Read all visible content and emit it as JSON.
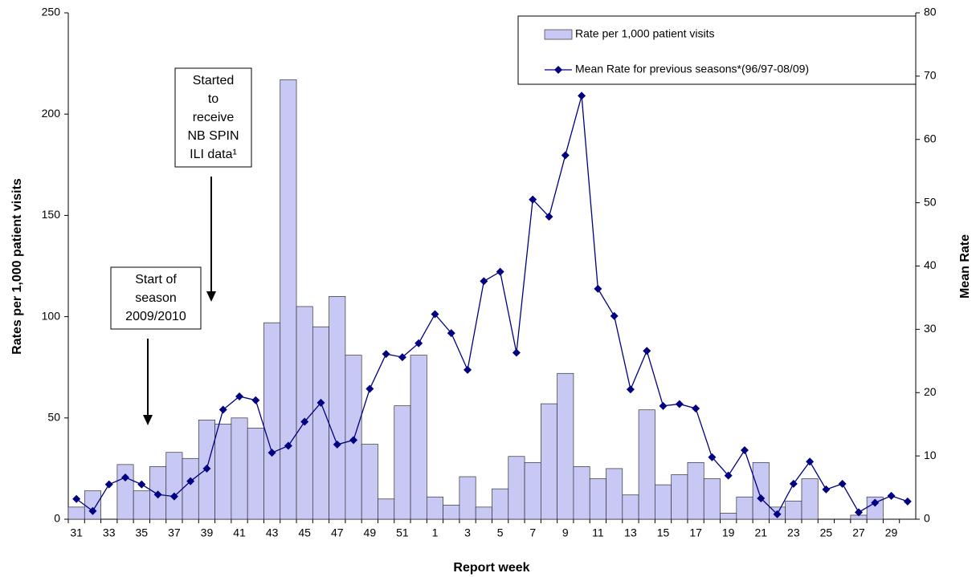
{
  "chart_data": {
    "type": "bar-line",
    "xlabel": "Report week",
    "ylabel": "Rates per 1,000 patient visits",
    "y2label": "Mean Rate",
    "categories": [
      "31",
      null,
      "33",
      null,
      "35",
      null,
      "37",
      null,
      "39",
      null,
      "41",
      null,
      "43",
      null,
      "45",
      null,
      "47",
      null,
      "49",
      null,
      "51",
      null,
      "1",
      null,
      "3",
      null,
      "5",
      null,
      "7",
      null,
      "9",
      null,
      "11",
      null,
      "13",
      null,
      "15",
      null,
      "17",
      null,
      "19",
      null,
      "21",
      null,
      "23",
      null,
      "25",
      null,
      "27",
      null,
      "29",
      null
    ],
    "series": [
      {
        "name": "Rate per 1,000  patient visits",
        "type": "bar",
        "color": "#c8c8f4",
        "axis": "y",
        "values": [
          6,
          14,
          null,
          27,
          14,
          26,
          33,
          30,
          49,
          47,
          50,
          45,
          97,
          217,
          105,
          95,
          110,
          81,
          37,
          10,
          56,
          81,
          11,
          7,
          21,
          6,
          15,
          31,
          28,
          57,
          72,
          26,
          20,
          25,
          12,
          54,
          17,
          22,
          28,
          20,
          3,
          11,
          28,
          6,
          9,
          20,
          null,
          null,
          2,
          11,
          null,
          null
        ]
      },
      {
        "name": "Mean Rate  for previous seasons*(96/97-08/09)",
        "type": "line",
        "color": "#000080",
        "axis": "y2",
        "values": [
          3.2,
          1.3,
          5.5,
          6.6,
          5.5,
          3.9,
          3.6,
          6.0,
          8.0,
          17.3,
          19.4,
          18.8,
          10.5,
          11.6,
          15.4,
          18.4,
          11.8,
          12.5,
          20.6,
          26.1,
          25.6,
          27.8,
          32.4,
          29.4,
          23.6,
          37.6,
          39.1,
          26.3,
          50.5,
          47.8,
          57.5,
          66.9,
          36.4,
          32.1,
          20.5,
          26.6,
          17.9,
          18.2,
          17.5,
          9.8,
          6.9,
          10.9,
          3.3,
          0.8,
          5.6,
          9.1,
          4.7,
          5.6,
          1.1,
          2.6,
          3.7,
          2.8
        ]
      }
    ],
    "ylim": [
      0,
      250
    ],
    "yticks": [
      0,
      50,
      100,
      150,
      200,
      250
    ],
    "y2lim": [
      0,
      80
    ],
    "y2ticks": [
      0,
      10,
      20,
      30,
      40,
      50,
      60,
      70,
      80
    ],
    "legend": "top-right",
    "annotations": [
      {
        "lines": [
          "Start of",
          "season",
          "2009/2010"
        ]
      },
      {
        "lines": [
          "Started",
          "to",
          "receive",
          "NB SPIN",
          "ILI data¹"
        ]
      }
    ]
  }
}
